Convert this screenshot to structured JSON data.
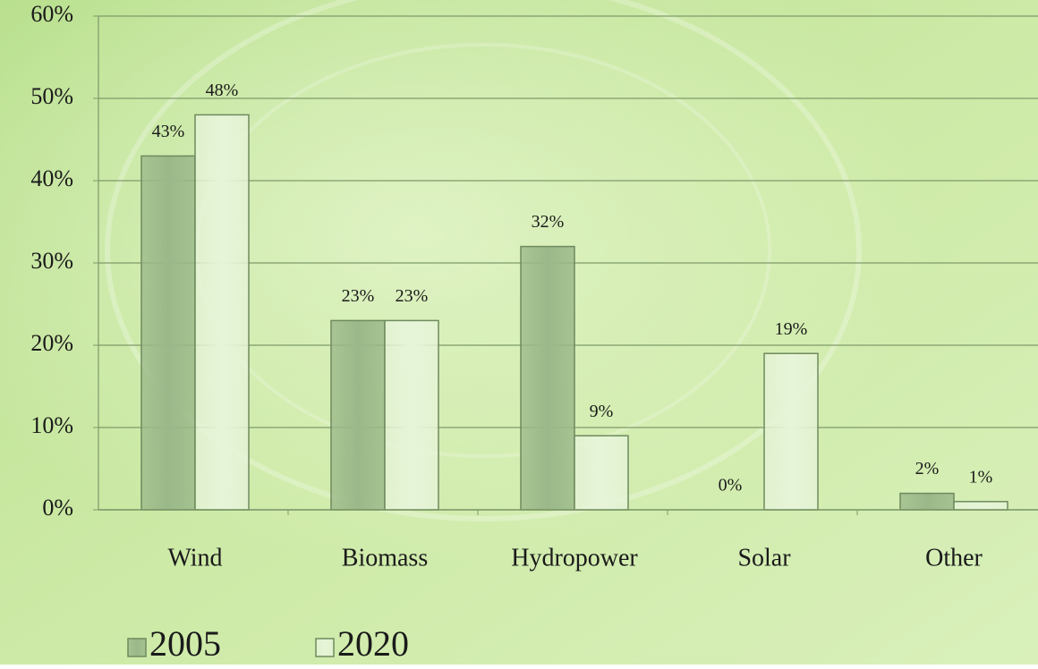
{
  "chart_data": {
    "type": "bar",
    "categories": [
      "Wind",
      "Biomass",
      "Hydropower",
      "Solar",
      "Other"
    ],
    "series": [
      {
        "name": "2005",
        "color": "#9ab889",
        "values": [
          43,
          23,
          32,
          0,
          2
        ],
        "value_labels": [
          "43%",
          "23%",
          "32%",
          "0%",
          "2%"
        ]
      },
      {
        "name": "2020",
        "color": "#e6f4d8",
        "values": [
          48,
          23,
          9,
          19,
          1
        ],
        "value_labels": [
          "48%",
          "23%",
          "9%",
          "19%",
          "1%"
        ]
      }
    ],
    "ylim": [
      0,
      60
    ],
    "yticks": [
      {
        "value": 0,
        "label": "0%"
      },
      {
        "value": 10,
        "label": "10%"
      },
      {
        "value": 20,
        "label": "20%"
      },
      {
        "value": 30,
        "label": "30%"
      },
      {
        "value": 40,
        "label": "40%"
      },
      {
        "value": 50,
        "label": "50%"
      },
      {
        "value": 60,
        "label": "60%"
      }
    ],
    "grid": true
  }
}
